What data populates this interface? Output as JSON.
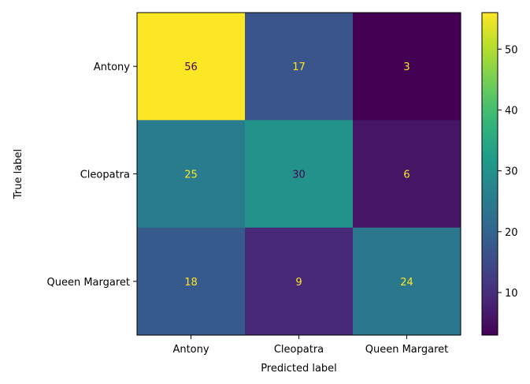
{
  "chart_data": {
    "type": "heatmap",
    "title": "",
    "xlabel": "Predicted label",
    "ylabel": "True label",
    "x_categories": [
      "Antony",
      "Cleopatra",
      "Queen Margaret"
    ],
    "y_categories": [
      "Antony",
      "Cleopatra",
      "Queen Margaret"
    ],
    "matrix": [
      [
        56,
        17,
        3
      ],
      [
        25,
        30,
        6
      ],
      [
        18,
        9,
        24
      ]
    ],
    "colormap": "viridis",
    "color_range": [
      3,
      56
    ],
    "colorbar_ticks": [
      10,
      20,
      30,
      40,
      50
    ],
    "annotation_colors": {
      "on_dark": "#fde725",
      "on_light": "#440154"
    }
  }
}
